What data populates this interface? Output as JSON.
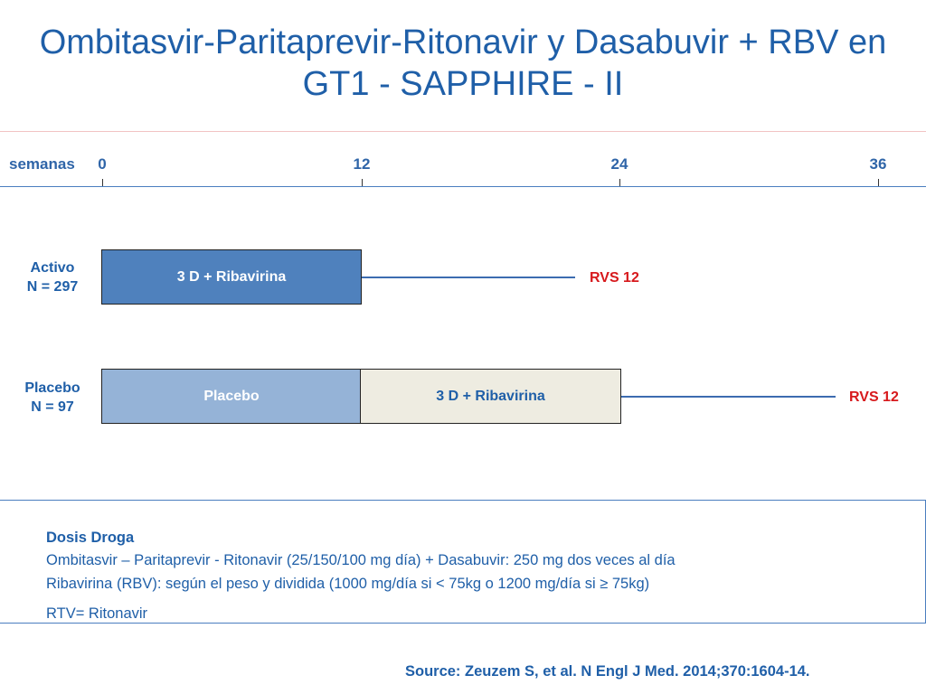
{
  "title": {
    "line1": "Ombitasvir-Paritaprevir-Ritonavir y Dasabuvir + RBV en",
    "line2": "GT1 - SAPPHIRE - II"
  },
  "timeline": {
    "label": "semanas",
    "ticks": [
      "0",
      "12",
      "24",
      "36"
    ]
  },
  "arms": [
    {
      "name": "Activo",
      "n": "N = 297",
      "segments": [
        "3 D + Ribavirina"
      ],
      "outcome": "RVS 12"
    },
    {
      "name": "Placebo",
      "n": "N = 97",
      "segments": [
        "Placebo",
        "3 D + Ribavirina"
      ],
      "outcome": "RVS 12"
    }
  ],
  "dosing": {
    "title": "Dosis Droga",
    "lines": [
      "Ombitasvir – Paritaprevir - Ritonavir (25/150/100 mg día) + Dasabuvir: 250 mg dos veces al día",
      "Ribavirina (RBV): según el peso y dividida (1000 mg/día si < 75kg o 1200 mg/día si ≥ 75kg)",
      "RTV= Ritonavir"
    ]
  },
  "source": "Source: Zeuzem S, et al.  N Engl J Med.  2014;370:1604-14.",
  "colors": {
    "title": "#1f5fa8",
    "active_box": "#4f81bd",
    "placebo_box": "#95b3d7",
    "treatment_box": "#eeece1",
    "outcome": "#d7191c"
  }
}
